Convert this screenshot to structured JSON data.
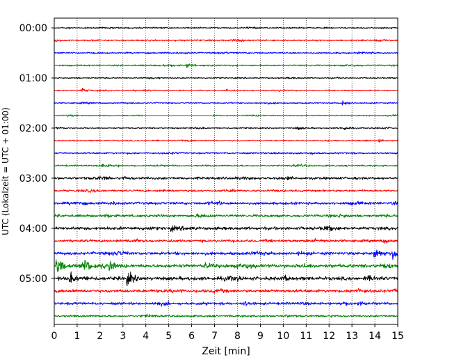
{
  "chart_data": {
    "type": "line",
    "title": "",
    "xlabel": "Zeit  [min]",
    "ylabel": "UTC (Lokalzeit = UTC + 01:00)",
    "xlim": [
      0,
      15
    ],
    "x_ticks": [
      0,
      1,
      2,
      3,
      4,
      5,
      6,
      7,
      8,
      9,
      10,
      11,
      12,
      13,
      14,
      15
    ],
    "y_tick_labels": [
      "00:00",
      "01:00",
      "02:00",
      "03:00",
      "04:00",
      "05:00"
    ],
    "grid": "vertical dotted at each minute",
    "trace_colors": [
      "#000000",
      "#ff0000",
      "#0000ff",
      "#008000"
    ],
    "trace_minutes_per_line": 15,
    "series": [
      {
        "start": "00:00",
        "amplitude": 0.12,
        "events": []
      },
      {
        "start": "00:15",
        "amplitude": 0.15,
        "events": []
      },
      {
        "start": "00:30",
        "amplitude": 0.15,
        "events": []
      },
      {
        "start": "00:45",
        "amplitude": 0.15,
        "events": [
          {
            "t": 5.8,
            "amp": 0.45
          }
        ]
      },
      {
        "start": "01:00",
        "amplitude": 0.12,
        "events": []
      },
      {
        "start": "01:15",
        "amplitude": 0.12,
        "events": [
          {
            "t": 1.2,
            "amp": 0.5
          },
          {
            "t": 7.5,
            "amp": 0.3
          }
        ]
      },
      {
        "start": "01:30",
        "amplitude": 0.12,
        "events": [
          {
            "t": 12.6,
            "amp": 0.45
          }
        ]
      },
      {
        "start": "01:45",
        "amplitude": 0.12,
        "events": [],
        "gap": [
          3.9,
          6.9
        ]
      },
      {
        "start": "02:00",
        "amplitude": 0.12,
        "events": [
          {
            "t": 10.6,
            "amp": 0.4
          },
          {
            "t": 12.6,
            "amp": 0.5
          }
        ]
      },
      {
        "start": "02:15",
        "amplitude": 0.12,
        "events": [
          {
            "t": 14.2,
            "amp": 0.3
          }
        ]
      },
      {
        "start": "02:30",
        "amplitude": 0.15,
        "events": [
          {
            "t": 9.6,
            "amp": 0.3
          }
        ]
      },
      {
        "start": "02:45",
        "amplitude": 0.15,
        "events": [
          {
            "t": 2.1,
            "amp": 0.35
          }
        ]
      },
      {
        "start": "03:00",
        "amplitude": 0.25,
        "events": [
          {
            "t": 3.0,
            "amp": 0.35
          }
        ]
      },
      {
        "start": "03:15",
        "amplitude": 0.2,
        "events": [
          {
            "t": 4.7,
            "amp": 0.35
          }
        ]
      },
      {
        "start": "03:30",
        "amplitude": 0.25,
        "events": [
          {
            "t": 1.0,
            "amp": 0.3
          },
          {
            "t": 2.5,
            "amp": 0.35
          }
        ]
      },
      {
        "start": "03:45",
        "amplitude": 0.25,
        "events": [
          {
            "t": 2.2,
            "amp": 0.3
          }
        ]
      },
      {
        "start": "04:00",
        "amplitude": 0.3,
        "events": [
          {
            "t": 5.1,
            "amp": 0.4
          }
        ]
      },
      {
        "start": "04:15",
        "amplitude": 0.25,
        "events": [
          {
            "t": 14.4,
            "amp": 0.35
          }
        ]
      },
      {
        "start": "04:30",
        "amplitude": 0.3,
        "events": [
          {
            "t": 14.0,
            "amp": 1.4
          },
          {
            "t": 14.8,
            "amp": 1.5
          }
        ]
      },
      {
        "start": "04:45",
        "amplitude": 0.35,
        "events": [
          {
            "t": 0.1,
            "amp": 2.0
          },
          {
            "t": 1.3,
            "amp": 1.8
          },
          {
            "t": 2.4,
            "amp": 1.0
          },
          {
            "t": 6.6,
            "amp": 0.5
          },
          {
            "t": 10.8,
            "amp": 0.55
          }
        ]
      },
      {
        "start": "05:00",
        "amplitude": 0.35,
        "events": [
          {
            "t": 0.7,
            "amp": 1.0
          },
          {
            "t": 3.2,
            "amp": 1.6
          },
          {
            "t": 10.0,
            "amp": 0.5
          }
        ]
      },
      {
        "start": "05:15",
        "amplitude": 0.3,
        "events": [
          {
            "t": 14.9,
            "amp": 0.3
          }
        ]
      },
      {
        "start": "05:30",
        "amplitude": 0.25,
        "events": [
          {
            "t": 8.3,
            "amp": 0.5
          },
          {
            "t": 13.3,
            "amp": 0.5
          }
        ]
      },
      {
        "start": "05:45",
        "amplitude": 0.2,
        "events": []
      }
    ]
  }
}
